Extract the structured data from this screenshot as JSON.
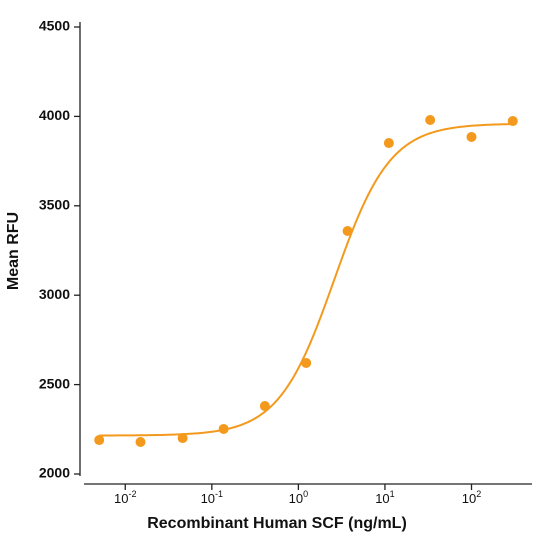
{
  "chart_data": {
    "type": "scatter",
    "x_label": "Recombinant Human SCF (ng/mL)",
    "y_label": "Mean RFU",
    "color": "#f39a1e",
    "x": [
      0.005,
      0.015,
      0.046,
      0.137,
      0.41,
      1.23,
      3.7,
      11.1,
      33.3,
      100,
      300
    ],
    "values": [
      2190,
      2179,
      2201,
      2252,
      2380,
      2621,
      3359,
      3851,
      3980,
      3885,
      3974
    ],
    "fit_curve": {
      "bottom": 2215,
      "top": 3960,
      "ec50": 2.6,
      "hill": 1.35
    },
    "x_log": true,
    "xlim": [
      0.003,
      500
    ],
    "ylim": [
      2000,
      4500
    ],
    "xticks": [
      {
        "value": 0.01,
        "label": "10",
        "sup": "-2"
      },
      {
        "value": 0.1,
        "label": "10",
        "sup": "-1"
      },
      {
        "value": 1,
        "label": "10",
        "sup": "0"
      },
      {
        "value": 10,
        "label": "10",
        "sup": "1"
      },
      {
        "value": 100,
        "label": "10",
        "sup": "2"
      }
    ],
    "yticks": [
      2000,
      2500,
      3000,
      3500,
      4000,
      4500
    ]
  }
}
